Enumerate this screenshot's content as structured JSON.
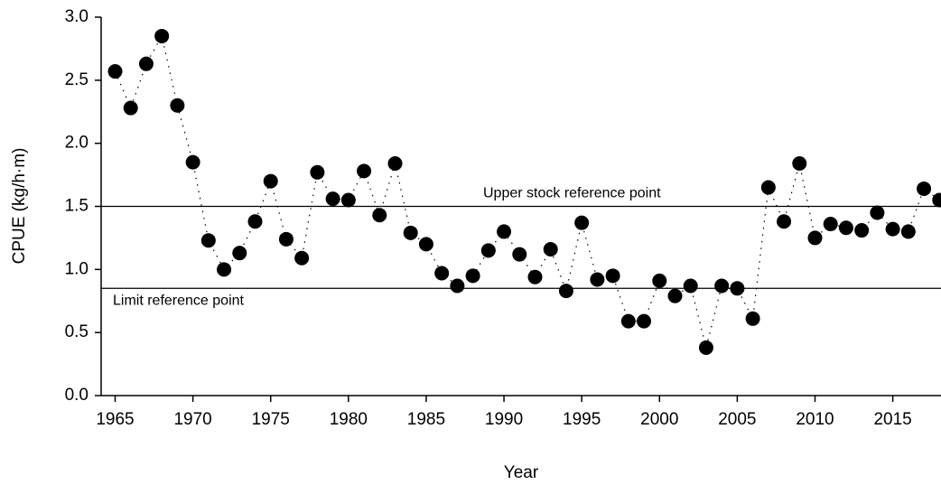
{
  "chart_data": {
    "type": "line",
    "x_label": "Year",
    "y_label": "CPUE (kg/h·m)",
    "x": [
      1965,
      1966,
      1967,
      1968,
      1969,
      1970,
      1971,
      1972,
      1973,
      1974,
      1975,
      1976,
      1977,
      1978,
      1979,
      1980,
      1981,
      1982,
      1983,
      1984,
      1985,
      1986,
      1987,
      1988,
      1989,
      1990,
      1991,
      1992,
      1993,
      1994,
      1995,
      1996,
      1997,
      1998,
      1999,
      2000,
      2001,
      2002,
      2003,
      2004,
      2005,
      2006,
      2007,
      2008,
      2009,
      2010,
      2011,
      2012,
      2013,
      2014,
      2015,
      2016,
      2017,
      2018
    ],
    "values": [
      2.57,
      2.28,
      2.63,
      2.85,
      2.3,
      1.85,
      1.23,
      1.0,
      1.13,
      1.38,
      1.7,
      1.24,
      1.09,
      1.77,
      1.56,
      1.55,
      1.78,
      1.43,
      1.84,
      1.29,
      1.2,
      0.97,
      0.87,
      0.95,
      1.15,
      1.3,
      1.12,
      0.94,
      1.16,
      0.83,
      1.37,
      0.92,
      0.95,
      0.59,
      0.59,
      0.91,
      0.79,
      0.87,
      0.38,
      0.87,
      0.85,
      0.61,
      1.65,
      1.38,
      1.84,
      1.25,
      1.36,
      1.33,
      1.31,
      1.45,
      1.32,
      1.3,
      1.64,
      1.55
    ],
    "color": "#000000",
    "xlim": [
      1964.1,
      2018.1
    ],
    "xticks": [
      1965,
      1970,
      1975,
      1980,
      1985,
      1990,
      1995,
      2000,
      2005,
      2010,
      2015
    ],
    "ylim": [
      0,
      3
    ],
    "yticks": [
      {
        "value": 0,
        "label": "0.0"
      },
      0.5,
      {
        "value": 1,
        "label": "1.0"
      },
      1.5,
      {
        "value": 2,
        "label": "2.0"
      },
      2.5,
      {
        "value": 3,
        "label": "3.0"
      }
    ],
    "reference_lines": [
      {
        "value": 1.5,
        "label": "Upper stock reference point"
      },
      {
        "value": 0.85,
        "label": "Limit reference point"
      }
    ]
  }
}
